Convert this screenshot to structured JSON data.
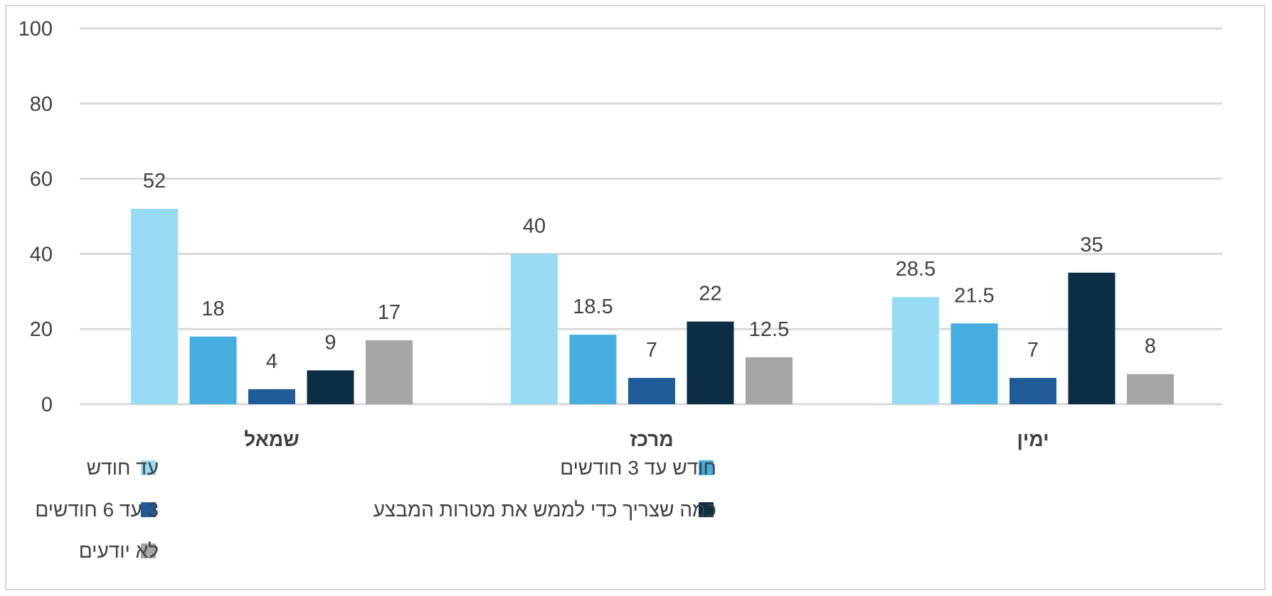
{
  "chart_data": {
    "type": "bar",
    "categories": [
      "שמאל",
      "מרכז",
      "ימין"
    ],
    "series": [
      {
        "name": "עד חודש",
        "color": "#97dbf5",
        "values": [
          52,
          40,
          28.5
        ]
      },
      {
        "name": "חודש עד 3 חודשים",
        "color": "#45ade0",
        "values": [
          18,
          18.5,
          21.5
        ]
      },
      {
        "name": "3 עד 6 חודשים",
        "color": "#1f5b99",
        "values": [
          4,
          7,
          7
        ]
      },
      {
        "name": "כמה שצריך כדי לממש את מטרות המבצע",
        "color": "#0b2e44",
        "values": [
          9,
          22,
          35
        ]
      },
      {
        "name": "לא יודעים",
        "color": "#a6a6a6",
        "values": [
          17,
          12.5,
          8
        ]
      }
    ],
    "yticks": [
      "0",
      "20",
      "40",
      "60",
      "80",
      "100"
    ],
    "ylim": [
      0,
      100
    ],
    "title": "",
    "xlabel": "",
    "ylabel": "",
    "grid": true,
    "legend_position": "bottom"
  }
}
